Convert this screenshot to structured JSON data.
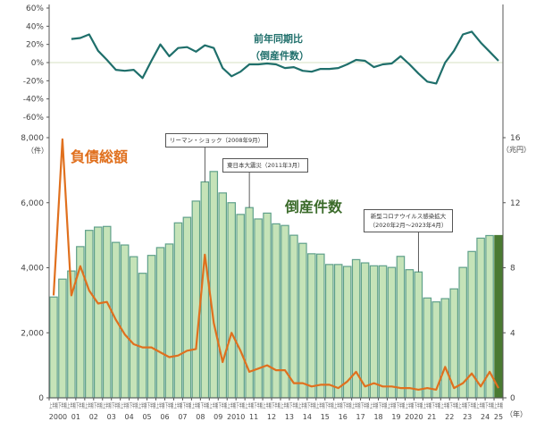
{
  "chart_data": [
    {
      "type": "line",
      "title": "前年同期比",
      "subtitle": "（倒産件数）",
      "ylabel": "",
      "ylim": [
        -60,
        60
      ],
      "yticks": [
        "60%",
        "40%",
        "20%",
        "0%",
        "-20%",
        "-40%",
        "-60%"
      ],
      "series": [
        {
          "name": "前年同期比（倒産件数）",
          "color": "#1f6f6b",
          "start_index": 2,
          "values": [
            26,
            27,
            31,
            13,
            3,
            -8,
            -9,
            -8,
            -17,
            2,
            20,
            7,
            16,
            17,
            12,
            19,
            16,
            -6,
            -15,
            -10,
            -2,
            -2,
            -1,
            -2,
            -6,
            -5,
            -9,
            -10,
            -7,
            -7,
            -6,
            -2,
            3,
            2,
            -5,
            -2,
            -1,
            7,
            -2,
            -12,
            -21,
            -23,
            0,
            13,
            31,
            34,
            22,
            12,
            2
          ]
        }
      ]
    },
    {
      "type": "bar",
      "title": "倒産件数",
      "ylabel": "（件）",
      "ylim": [
        0,
        8000
      ],
      "yticks": [
        "8,000",
        "6,000",
        "4,000",
        "2,000",
        "0"
      ],
      "categories_half": [
        "上半期",
        "下半期"
      ],
      "year_labels": [
        "2000",
        "01",
        "02",
        "03",
        "04",
        "05",
        "06",
        "07",
        "08",
        "09",
        "2010",
        "11",
        "12",
        "13",
        "14",
        "15",
        "16",
        "17",
        "18",
        "19",
        "2020",
        "21",
        "22",
        "23",
        "24",
        "25"
      ],
      "x_unit": "（年）",
      "series": [
        {
          "name": "倒産件数",
          "color": "#c5e3b8",
          "edge_color": "#5fa08a",
          "highlight_last_color": "#4a7a32",
          "values": [
            3100,
            3650,
            3900,
            4650,
            5150,
            5250,
            5270,
            4780,
            4700,
            4340,
            3830,
            4380,
            4620,
            4730,
            5380,
            5550,
            6050,
            6640,
            6960,
            6300,
            6000,
            5640,
            5850,
            5500,
            5680,
            5350,
            5300,
            5000,
            4750,
            4430,
            4420,
            4100,
            4100,
            4040,
            4250,
            4150,
            4060,
            4060,
            4010,
            4350,
            3940,
            3870,
            3070,
            2950,
            3050,
            3350,
            4010,
            4500,
            4910,
            4990,
            4990
          ]
        }
      ]
    },
    {
      "type": "line",
      "title": "負債総額",
      "ylabel": "（兆円）",
      "ylim": [
        0,
        16
      ],
      "yticks": [
        "16",
        "12",
        "8",
        "4",
        "0"
      ],
      "series": [
        {
          "name": "負債総額",
          "color": "#e0701e",
          "values": [
            6.3,
            15.9,
            6.3,
            8.1,
            6.6,
            5.8,
            5.9,
            4.8,
            3.9,
            3.3,
            3.1,
            3.1,
            2.8,
            2.5,
            2.6,
            2.9,
            3.0,
            8.8,
            4.6,
            2.2,
            4.0,
            2.9,
            1.6,
            1.8,
            2.0,
            1.7,
            1.7,
            0.9,
            0.9,
            0.7,
            0.8,
            0.8,
            0.6,
            1.0,
            1.6,
            0.7,
            0.9,
            0.7,
            0.7,
            0.6,
            0.6,
            0.5,
            0.6,
            0.5,
            1.9,
            0.6,
            0.9,
            1.5,
            0.7,
            1.6,
            0.6
          ]
        }
      ]
    }
  ],
  "labels": {
    "yoy_title": "前年同期比",
    "yoy_subtitle": "（倒産件数）",
    "debt_label": "負債総額",
    "count_label": "倒産件数",
    "left_unit": "（件）",
    "right_unit": "（兆円）",
    "x_unit": "（年）"
  },
  "annotations": [
    {
      "text": "リーマン・ショック（2008年9月）",
      "bar_index": 17
    },
    {
      "text": "東日本大震災（2011年3月）",
      "bar_index": 22
    },
    {
      "text": "新型コロナウイルス感染拡大",
      "text2": "（2020年2月～2023年4月）",
      "bar_index": 41
    }
  ]
}
